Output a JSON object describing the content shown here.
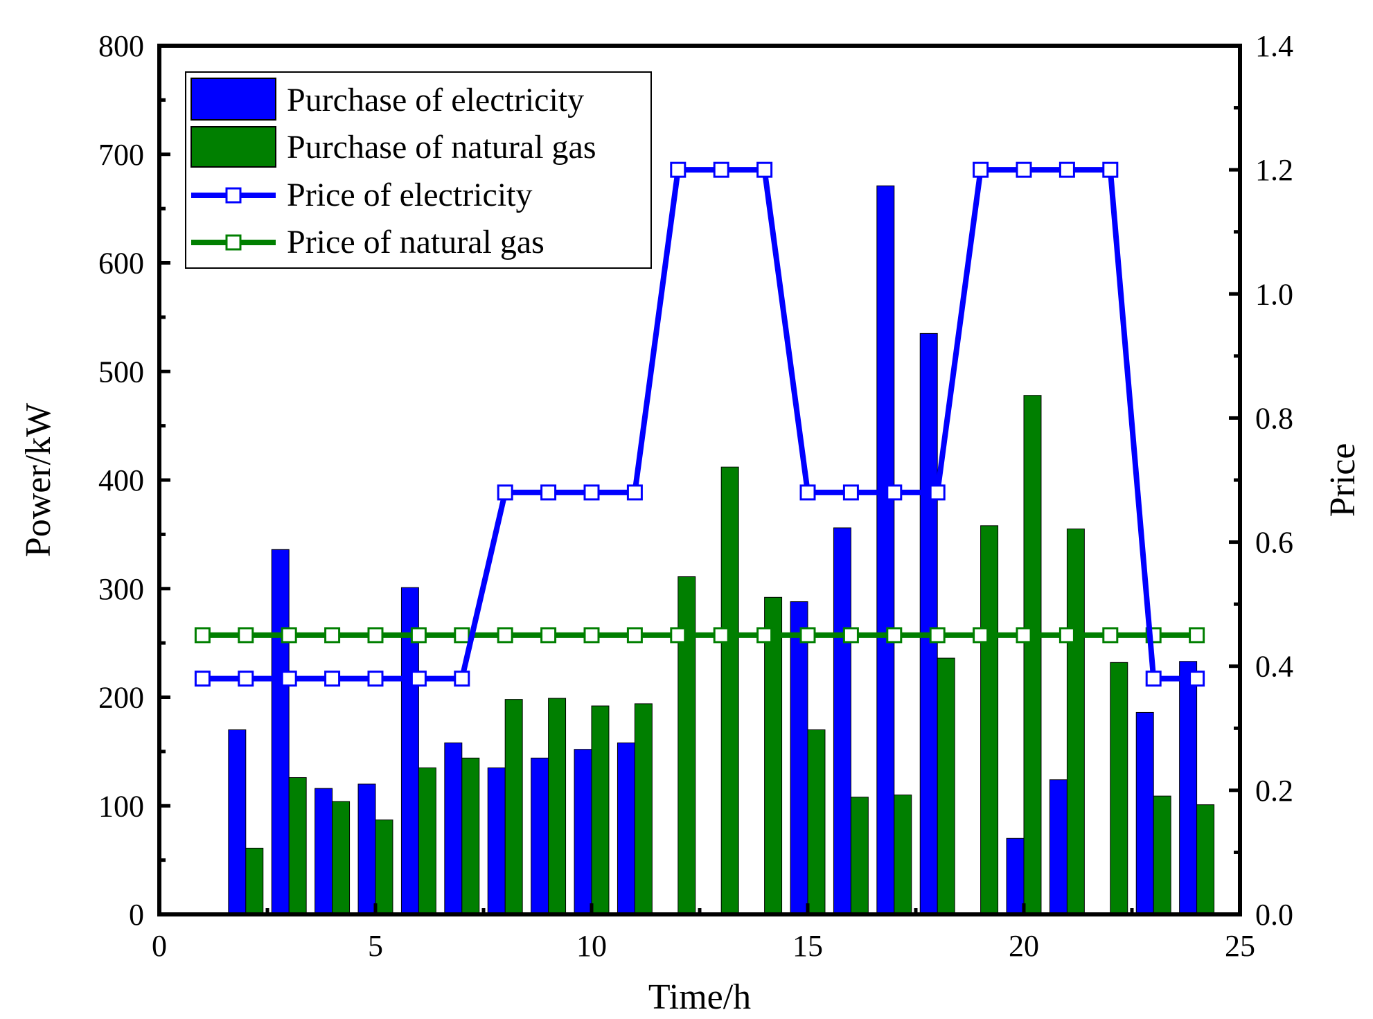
{
  "chart_data": {
    "type": "bar+line",
    "xlabel": "Time/h",
    "ylabel_left": "Power/kW",
    "ylabel_right": "Price",
    "xlim": [
      0,
      25
    ],
    "ylim_left": [
      0,
      800
    ],
    "ylim_right": [
      0.0,
      1.4
    ],
    "x_ticks": [
      "0",
      "5",
      "10",
      "15",
      "20",
      "25"
    ],
    "y_left_ticks": [
      "0",
      "100",
      "200",
      "300",
      "400",
      "500",
      "600",
      "700",
      "800"
    ],
    "y_right_ticks": [
      "0.0",
      "0.2",
      "0.4",
      "0.6",
      "0.8",
      "1.0",
      "1.2",
      "1.4"
    ],
    "hours": [
      1,
      2,
      3,
      4,
      5,
      6,
      7,
      8,
      9,
      10,
      11,
      12,
      13,
      14,
      15,
      16,
      17,
      18,
      19,
      20,
      21,
      22,
      23,
      24
    ],
    "legend": [
      "Purchase of electricity",
      "Purchase of natural gas",
      "Price of electricity",
      "Price of natural gas"
    ],
    "series": [
      {
        "name": "Purchase of electricity",
        "kind": "bar",
        "axis": "left",
        "color": "#0000ff",
        "values": [
          0,
          170,
          336,
          116,
          120,
          301,
          158,
          135,
          144,
          152,
          158,
          0,
          0,
          0,
          288,
          356,
          671,
          535,
          0,
          70,
          124,
          0,
          186,
          233
        ]
      },
      {
        "name": "Purchase of natural gas",
        "kind": "bar",
        "axis": "left",
        "color": "#007f00",
        "values": [
          0,
          61,
          126,
          104,
          87,
          135,
          144,
          198,
          199,
          192,
          194,
          311,
          412,
          292,
          170,
          108,
          110,
          236,
          358,
          478,
          355,
          232,
          109,
          101
        ]
      },
      {
        "name": "Price of electricity",
        "kind": "line",
        "axis": "right",
        "color": "#0000ff",
        "values": [
          0.38,
          0.38,
          0.38,
          0.38,
          0.38,
          0.38,
          0.38,
          0.68,
          0.68,
          0.68,
          0.68,
          1.2,
          1.2,
          1.2,
          0.68,
          0.68,
          0.68,
          0.68,
          1.2,
          1.2,
          1.2,
          1.2,
          0.38,
          0.38
        ]
      },
      {
        "name": "Price of natural gas",
        "kind": "line",
        "axis": "right",
        "color": "#007f00",
        "values": [
          0.45,
          0.45,
          0.45,
          0.45,
          0.45,
          0.45,
          0.45,
          0.45,
          0.45,
          0.45,
          0.45,
          0.45,
          0.45,
          0.45,
          0.45,
          0.45,
          0.45,
          0.45,
          0.45,
          0.45,
          0.45,
          0.45,
          0.45,
          0.45
        ]
      }
    ]
  }
}
